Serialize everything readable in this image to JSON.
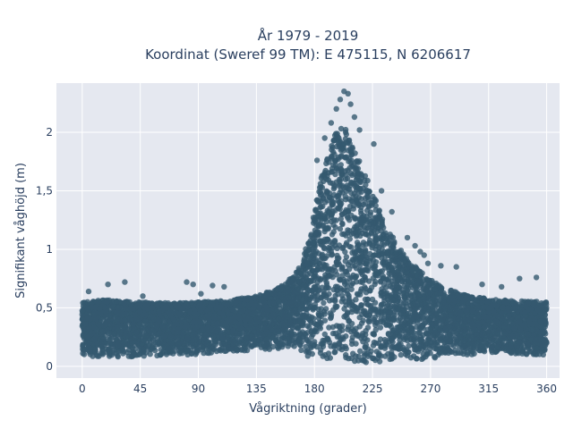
{
  "chart_data": {
    "type": "scatter",
    "title_lines": [
      "År 1979 - 2019",
      "Koordinat (Sweref 99 TM): E 475115, N 6206617"
    ],
    "xlabel": "Vågriktning (grader)",
    "ylabel": "Signifikant våghöjd (m)",
    "xlim": [
      -20,
      370
    ],
    "ylim": [
      -0.1,
      2.42
    ],
    "x_ticks": [
      0,
      45,
      90,
      135,
      180,
      225,
      270,
      315,
      360
    ],
    "x_tick_labels": [
      "0",
      "45",
      "90",
      "135",
      "180",
      "225",
      "270",
      "315",
      "360"
    ],
    "y_ticks": [
      0,
      0.5,
      1,
      1.5,
      2
    ],
    "y_tick_labels": [
      "0",
      "0,5",
      "1",
      "1,5",
      "2"
    ],
    "grid": true,
    "marker_color": "#35596f",
    "marker_opacity": 0.8,
    "background_color": "#e5e8f0",
    "grid_color": "#ffffff",
    "envelope": {
      "x": [
        0,
        20,
        45,
        70,
        90,
        110,
        135,
        150,
        165,
        175,
        185,
        195,
        200,
        205,
        215,
        225,
        235,
        250,
        265,
        280,
        300,
        320,
        340,
        360
      ],
      "y_upper": [
        0.55,
        0.57,
        0.55,
        0.54,
        0.55,
        0.56,
        0.6,
        0.66,
        0.78,
        1.05,
        1.6,
        1.95,
        2.1,
        2.02,
        1.75,
        1.5,
        1.2,
        0.95,
        0.78,
        0.67,
        0.6,
        0.57,
        0.56,
        0.55
      ],
      "y_lower": [
        0.08,
        0.08,
        0.08,
        0.09,
        0.1,
        0.12,
        0.14,
        0.14,
        0.12,
        0.08,
        0.05,
        0.03,
        0.02,
        0.02,
        0.02,
        0.03,
        0.04,
        0.05,
        0.06,
        0.08,
        0.1,
        0.11,
        0.1,
        0.09
      ]
    },
    "outliers": [
      {
        "x": 203,
        "y": 2.35
      },
      {
        "x": 206,
        "y": 2.33
      },
      {
        "x": 200,
        "y": 2.28
      },
      {
        "x": 208,
        "y": 2.24
      },
      {
        "x": 197,
        "y": 2.2
      },
      {
        "x": 211,
        "y": 2.13
      },
      {
        "x": 193,
        "y": 2.08
      },
      {
        "x": 215,
        "y": 2.02
      },
      {
        "x": 188,
        "y": 1.95
      },
      {
        "x": 226,
        "y": 1.9
      },
      {
        "x": 182,
        "y": 1.76
      },
      {
        "x": 232,
        "y": 1.5
      },
      {
        "x": 240,
        "y": 1.32
      },
      {
        "x": 252,
        "y": 1.1
      },
      {
        "x": 258,
        "y": 1.03
      },
      {
        "x": 262,
        "y": 0.98
      },
      {
        "x": 265,
        "y": 0.95
      },
      {
        "x": 268,
        "y": 0.88
      },
      {
        "x": 278,
        "y": 0.86
      },
      {
        "x": 290,
        "y": 0.85
      },
      {
        "x": 33,
        "y": 0.72
      },
      {
        "x": 20,
        "y": 0.7
      },
      {
        "x": 81,
        "y": 0.72
      },
      {
        "x": 86,
        "y": 0.7
      },
      {
        "x": 101,
        "y": 0.69
      },
      {
        "x": 110,
        "y": 0.68
      },
      {
        "x": 92,
        "y": 0.62
      },
      {
        "x": 352,
        "y": 0.76
      },
      {
        "x": 339,
        "y": 0.75
      },
      {
        "x": 5,
        "y": 0.64
      },
      {
        "x": 12,
        "y": 0.55
      },
      {
        "x": 47,
        "y": 0.6
      },
      {
        "x": 325,
        "y": 0.68
      },
      {
        "x": 310,
        "y": 0.7
      }
    ]
  }
}
